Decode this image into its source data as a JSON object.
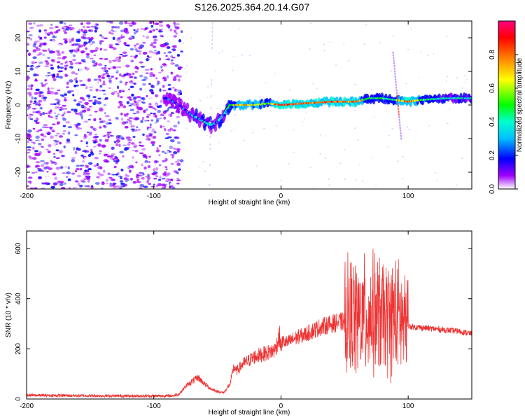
{
  "title": "S126.2025.364.20.14.G07",
  "chart_data": [
    {
      "type": "heatmap",
      "xlabel": "Height of straight line (km)",
      "ylabel": "Frequency (Hz)",
      "xlim": [
        -200,
        150
      ],
      "ylim": [
        -25,
        25
      ],
      "xticks": [
        -200,
        -100,
        0,
        100
      ],
      "yticks": [
        -20,
        -10,
        0,
        10,
        20
      ],
      "colorbar": {
        "label": "Normalized spectral amplitude",
        "range": [
          0,
          1
        ],
        "ticks": [
          "0.0",
          "0.2",
          "0.4",
          "0.6",
          "0.8"
        ]
      },
      "ridge": {
        "x": [
          -90,
          -80,
          -70,
          -60,
          -55,
          -50,
          -45,
          -40,
          -30,
          -20,
          -10,
          0,
          20,
          40,
          60,
          70,
          80,
          90,
          100,
          110,
          130,
          150
        ],
        "freq": [
          2,
          0,
          -3,
          -5,
          -6,
          -5,
          -3,
          0,
          0,
          0,
          0.5,
          0,
          0.5,
          1,
          1,
          2,
          2,
          1.5,
          1,
          1.5,
          2,
          2
        ],
        "amplitude": [
          0.25,
          0.25,
          0.3,
          0.4,
          0.45,
          0.35,
          0.35,
          0.55,
          0.8,
          0.75,
          0.6,
          0.95,
          0.85,
          0.9,
          0.85,
          0.5,
          0.55,
          0.5,
          0.9,
          0.6,
          0.45,
          0.4
        ]
      }
    },
    {
      "type": "line",
      "xlabel": "Height of straight line (km)",
      "ylabel": "SNR (10 * v/v)",
      "xlim": [
        -200,
        150
      ],
      "ylim": [
        0,
        670
      ],
      "xticks": [
        -200,
        -100,
        0,
        100
      ],
      "yticks": [
        0,
        200,
        400,
        600
      ],
      "series": [
        {
          "name": "SNR",
          "color": "#ee3333",
          "x": [
            -200,
            -180,
            -150,
            -120,
            -100,
            -85,
            -80,
            -75,
            -70,
            -65,
            -60,
            -55,
            -50,
            -45,
            -40,
            -37,
            -35,
            -30,
            -20,
            -10,
            -5,
            -1,
            0,
            1,
            5,
            10,
            20,
            30,
            40,
            50,
            55,
            60,
            70,
            77,
            80,
            90,
            97,
            100,
            110,
            120,
            130,
            140,
            150
          ],
          "y": [
            15,
            14,
            13,
            12,
            12,
            13,
            20,
            50,
            70,
            85,
            60,
            40,
            30,
            25,
            60,
            130,
            110,
            140,
            170,
            185,
            195,
            250,
            200,
            230,
            225,
            240,
            260,
            285,
            300,
            310,
            330,
            320,
            330,
            340,
            320,
            330,
            300,
            290,
            285,
            280,
            275,
            270,
            260
          ]
        }
      ]
    }
  ]
}
